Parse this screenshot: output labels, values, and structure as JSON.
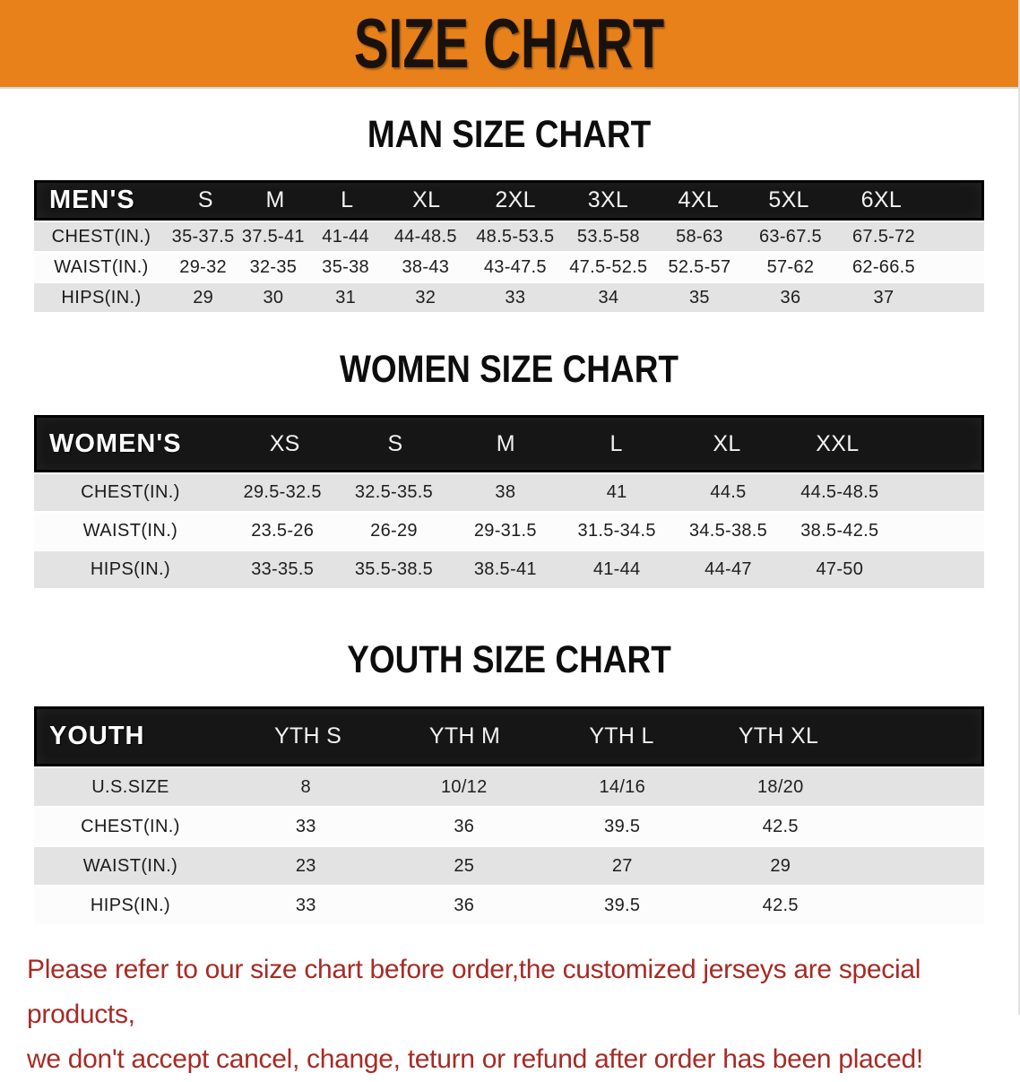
{
  "banner": {
    "title": "SIZE CHART",
    "bg_color": "#e8811a",
    "text_color": "#19120c"
  },
  "colors": {
    "header_bar": "#161616",
    "stripe_gray": "#e3e3e3",
    "stripe_white": "#fcfcfc",
    "disclaimer_red": "#a62b25"
  },
  "sections": {
    "men": {
      "heading": "MAN SIZE CHART",
      "corner": "MEN'S",
      "sizes": [
        "S",
        "M",
        "L",
        "XL",
        "2XL",
        "3XL",
        "4XL",
        "5XL",
        "6XL"
      ],
      "rows": [
        {
          "label": "CHEST(IN.)",
          "values": [
            "35-37.5",
            "37.5-41",
            "41-44",
            "44-48.5",
            "48.5-53.5",
            "53.5-58",
            "58-63",
            "63-67.5",
            "67.5-72"
          ]
        },
        {
          "label": "WAIST(IN.)",
          "values": [
            "29-32",
            "32-35",
            "35-38",
            "38-43",
            "43-47.5",
            "47.5-52.5",
            "52.5-57",
            "57-62",
            "62-66.5"
          ]
        },
        {
          "label": "HIPS(IN.)",
          "values": [
            "29",
            "30",
            "31",
            "32",
            "33",
            "34",
            "35",
            "36",
            "37"
          ]
        }
      ]
    },
    "women": {
      "heading": "WOMEN SIZE CHART",
      "corner": "WOMEN'S",
      "sizes": [
        "XS",
        "S",
        "M",
        "L",
        "XL",
        "XXL"
      ],
      "rows": [
        {
          "label": "CHEST(IN.)",
          "values": [
            "29.5-32.5",
            "32.5-35.5",
            "38",
            "41",
            "44.5",
            "44.5-48.5"
          ]
        },
        {
          "label": "WAIST(IN.)",
          "values": [
            "23.5-26",
            "26-29",
            "29-31.5",
            "31.5-34.5",
            "34.5-38.5",
            "38.5-42.5"
          ]
        },
        {
          "label": "HIPS(IN.)",
          "values": [
            "33-35.5",
            "35.5-38.5",
            "38.5-41",
            "41-44",
            "44-47",
            "47-50"
          ]
        }
      ]
    },
    "youth": {
      "heading": "YOUTH SIZE CHART",
      "corner": "YOUTH",
      "sizes": [
        "YTH S",
        "YTH M",
        "YTH L",
        "YTH XL"
      ],
      "rows": [
        {
          "label": "U.S.SIZE",
          "values": [
            "8",
            "10/12",
            "14/16",
            "18/20"
          ]
        },
        {
          "label": "CHEST(IN.)",
          "values": [
            "33",
            "36",
            "39.5",
            "42.5"
          ]
        },
        {
          "label": "WAIST(IN.)",
          "values": [
            "23",
            "25",
            "27",
            "29"
          ]
        },
        {
          "label": "HIPS(IN.)",
          "values": [
            "33",
            "36",
            "39.5",
            "42.5"
          ]
        }
      ]
    }
  },
  "disclaimer": {
    "line1": "Please refer to our size chart before order,the customized jerseys are special products,",
    "line2": "we don't accept cancel, change, teturn or refund after order has been placed!"
  }
}
